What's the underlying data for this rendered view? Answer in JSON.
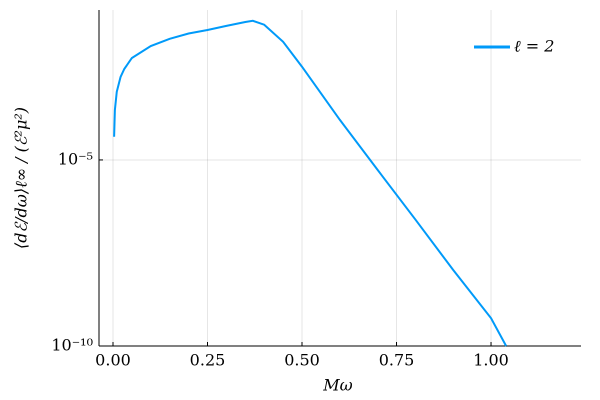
{
  "chart_data": {
    "type": "line",
    "x_label": "Mω",
    "y_label": "⟨dℰ/dω⟩ℓ∞ / (ℰ²μ²)",
    "log_y": true,
    "grid": true,
    "legend_position": "top-right",
    "xlim": [
      -0.037,
      1.238
    ],
    "ylim": [
      1e-10,
      0.107
    ],
    "xticks": [
      {
        "value": 0,
        "label": "0.00"
      },
      {
        "value": 0.25,
        "label": "0.25"
      },
      {
        "value": 0.5,
        "label": "0.50"
      },
      {
        "value": 0.75,
        "label": "0.75"
      },
      {
        "value": 1,
        "label": "1.00"
      }
    ],
    "yticks": [
      {
        "value": 1e-10,
        "label": "10⁻¹⁰"
      },
      {
        "value": 1e-05,
        "label": "10⁻⁵"
      }
    ],
    "x": [
      0.003,
      0.005,
      0.01,
      0.02,
      0.03,
      0.05,
      0.1,
      0.15,
      0.2,
      0.25,
      0.3,
      0.35,
      0.37,
      0.4,
      0.45,
      0.5,
      0.6,
      0.7,
      0.8,
      0.9,
      1.0,
      1.04
    ],
    "series": [
      {
        "name": "ℓ = 2",
        "color": "#009af9",
        "values": [
          4.2e-05,
          0.00022,
          0.00068,
          0.0017,
          0.0028,
          0.0055,
          0.0115,
          0.018,
          0.025,
          0.031,
          0.04,
          0.051,
          0.055,
          0.043,
          0.015,
          0.0032,
          0.00012,
          5.4e-06,
          2.5e-07,
          1.1e-08,
          5.6e-10,
          1e-10
        ]
      }
    ]
  }
}
